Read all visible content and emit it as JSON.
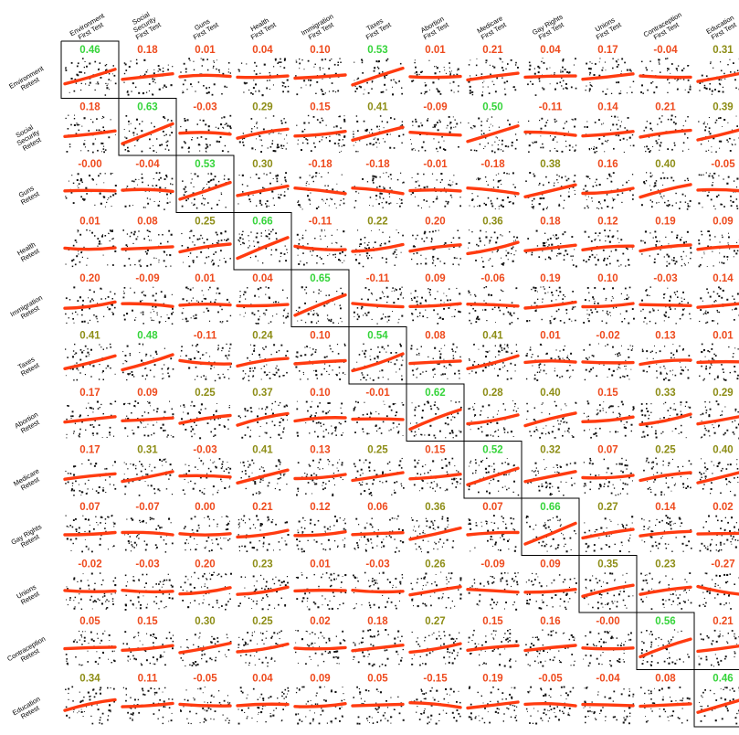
{
  "chart_data": {
    "type": "scatter-matrix",
    "title": "",
    "column_labels": [
      [
        "Environment",
        "First Test"
      ],
      [
        "Social",
        "Security",
        "First Test"
      ],
      [
        "Guns",
        "First Test"
      ],
      [
        "Health",
        "First Test"
      ],
      [
        "Immigration",
        "First Test"
      ],
      [
        "Taxes",
        "First Test"
      ],
      [
        "Abortion",
        "First Test"
      ],
      [
        "Medicare",
        "First Test"
      ],
      [
        "Gay Rights",
        "First Test"
      ],
      [
        "Unions",
        "First Test"
      ],
      [
        "Contraception",
        "First Test"
      ],
      [
        "Education",
        "First Test"
      ]
    ],
    "row_labels": [
      [
        "Environment",
        "Retest"
      ],
      [
        "Social",
        "Security",
        "Retest"
      ],
      [
        "Guns",
        "Retest"
      ],
      [
        "Health",
        "Retest"
      ],
      [
        "Immigration",
        "Retest"
      ],
      [
        "Taxes",
        "Retest"
      ],
      [
        "Abortion",
        "Retest"
      ],
      [
        "Medicare",
        "Retest"
      ],
      [
        "Gay Rights",
        "Retest"
      ],
      [
        "Unions",
        "Retest"
      ],
      [
        "Contraception",
        "Retest"
      ],
      [
        "Education",
        "Retest"
      ]
    ],
    "correlation_labels": [
      [
        "0.46",
        "0.18",
        "0.01",
        "0.04",
        "0.10",
        "0.53",
        "0.01",
        "0.21",
        "0.04",
        "0.17",
        "-0.04",
        "0.31"
      ],
      [
        "0.18",
        "0.63",
        "-0.03",
        "0.29",
        "0.15",
        "0.41",
        "-0.09",
        "0.50",
        "-0.11",
        "0.14",
        "0.21",
        "0.39"
      ],
      [
        "-0.00",
        "-0.04",
        "0.53",
        "0.30",
        "-0.18",
        "-0.18",
        "-0.01",
        "-0.18",
        "0.38",
        "0.16",
        "0.40",
        "-0.05"
      ],
      [
        "0.01",
        "0.08",
        "0.25",
        "0.66",
        "-0.11",
        "0.22",
        "0.20",
        "0.36",
        "0.18",
        "0.12",
        "0.19",
        "0.09"
      ],
      [
        "0.20",
        "-0.09",
        "0.01",
        "0.04",
        "0.65",
        "-0.11",
        "0.09",
        "-0.06",
        "0.19",
        "0.10",
        "-0.03",
        "0.14"
      ],
      [
        "0.41",
        "0.48",
        "-0.11",
        "0.24",
        "0.10",
        "0.54",
        "0.08",
        "0.41",
        "0.01",
        "-0.02",
        "0.13",
        "0.01"
      ],
      [
        "0.17",
        "0.09",
        "0.25",
        "0.37",
        "0.10",
        "-0.01",
        "0.62",
        "0.28",
        "0.40",
        "0.15",
        "0.33",
        "0.29"
      ],
      [
        "0.17",
        "0.31",
        "-0.03",
        "0.41",
        "0.13",
        "0.25",
        "0.15",
        "0.52",
        "0.32",
        "0.07",
        "0.25",
        "0.40"
      ],
      [
        "0.07",
        "-0.07",
        "0.00",
        "0.21",
        "0.12",
        "0.06",
        "0.36",
        "0.07",
        "0.66",
        "0.27",
        "0.14",
        "0.02"
      ],
      [
        "-0.02",
        "-0.03",
        "0.20",
        "0.23",
        "0.01",
        "-0.03",
        "0.26",
        "-0.09",
        "0.09",
        "0.35",
        "0.23",
        "-0.27"
      ],
      [
        "0.05",
        "0.15",
        "0.30",
        "0.25",
        "0.02",
        "0.18",
        "0.27",
        "0.15",
        "0.16",
        "-0.00",
        "0.56",
        "0.21"
      ],
      [
        "0.34",
        "0.11",
        "-0.05",
        "0.04",
        "0.09",
        "0.05",
        "-0.15",
        "0.19",
        "-0.05",
        "-0.04",
        "0.08",
        "0.46"
      ]
    ],
    "label_colors": {
      "high": "#35d43a",
      "mid": "#8d8d16",
      "low": "#ee4a1d"
    },
    "curve_color": "#ff3b10",
    "point_color": "#111111"
  }
}
